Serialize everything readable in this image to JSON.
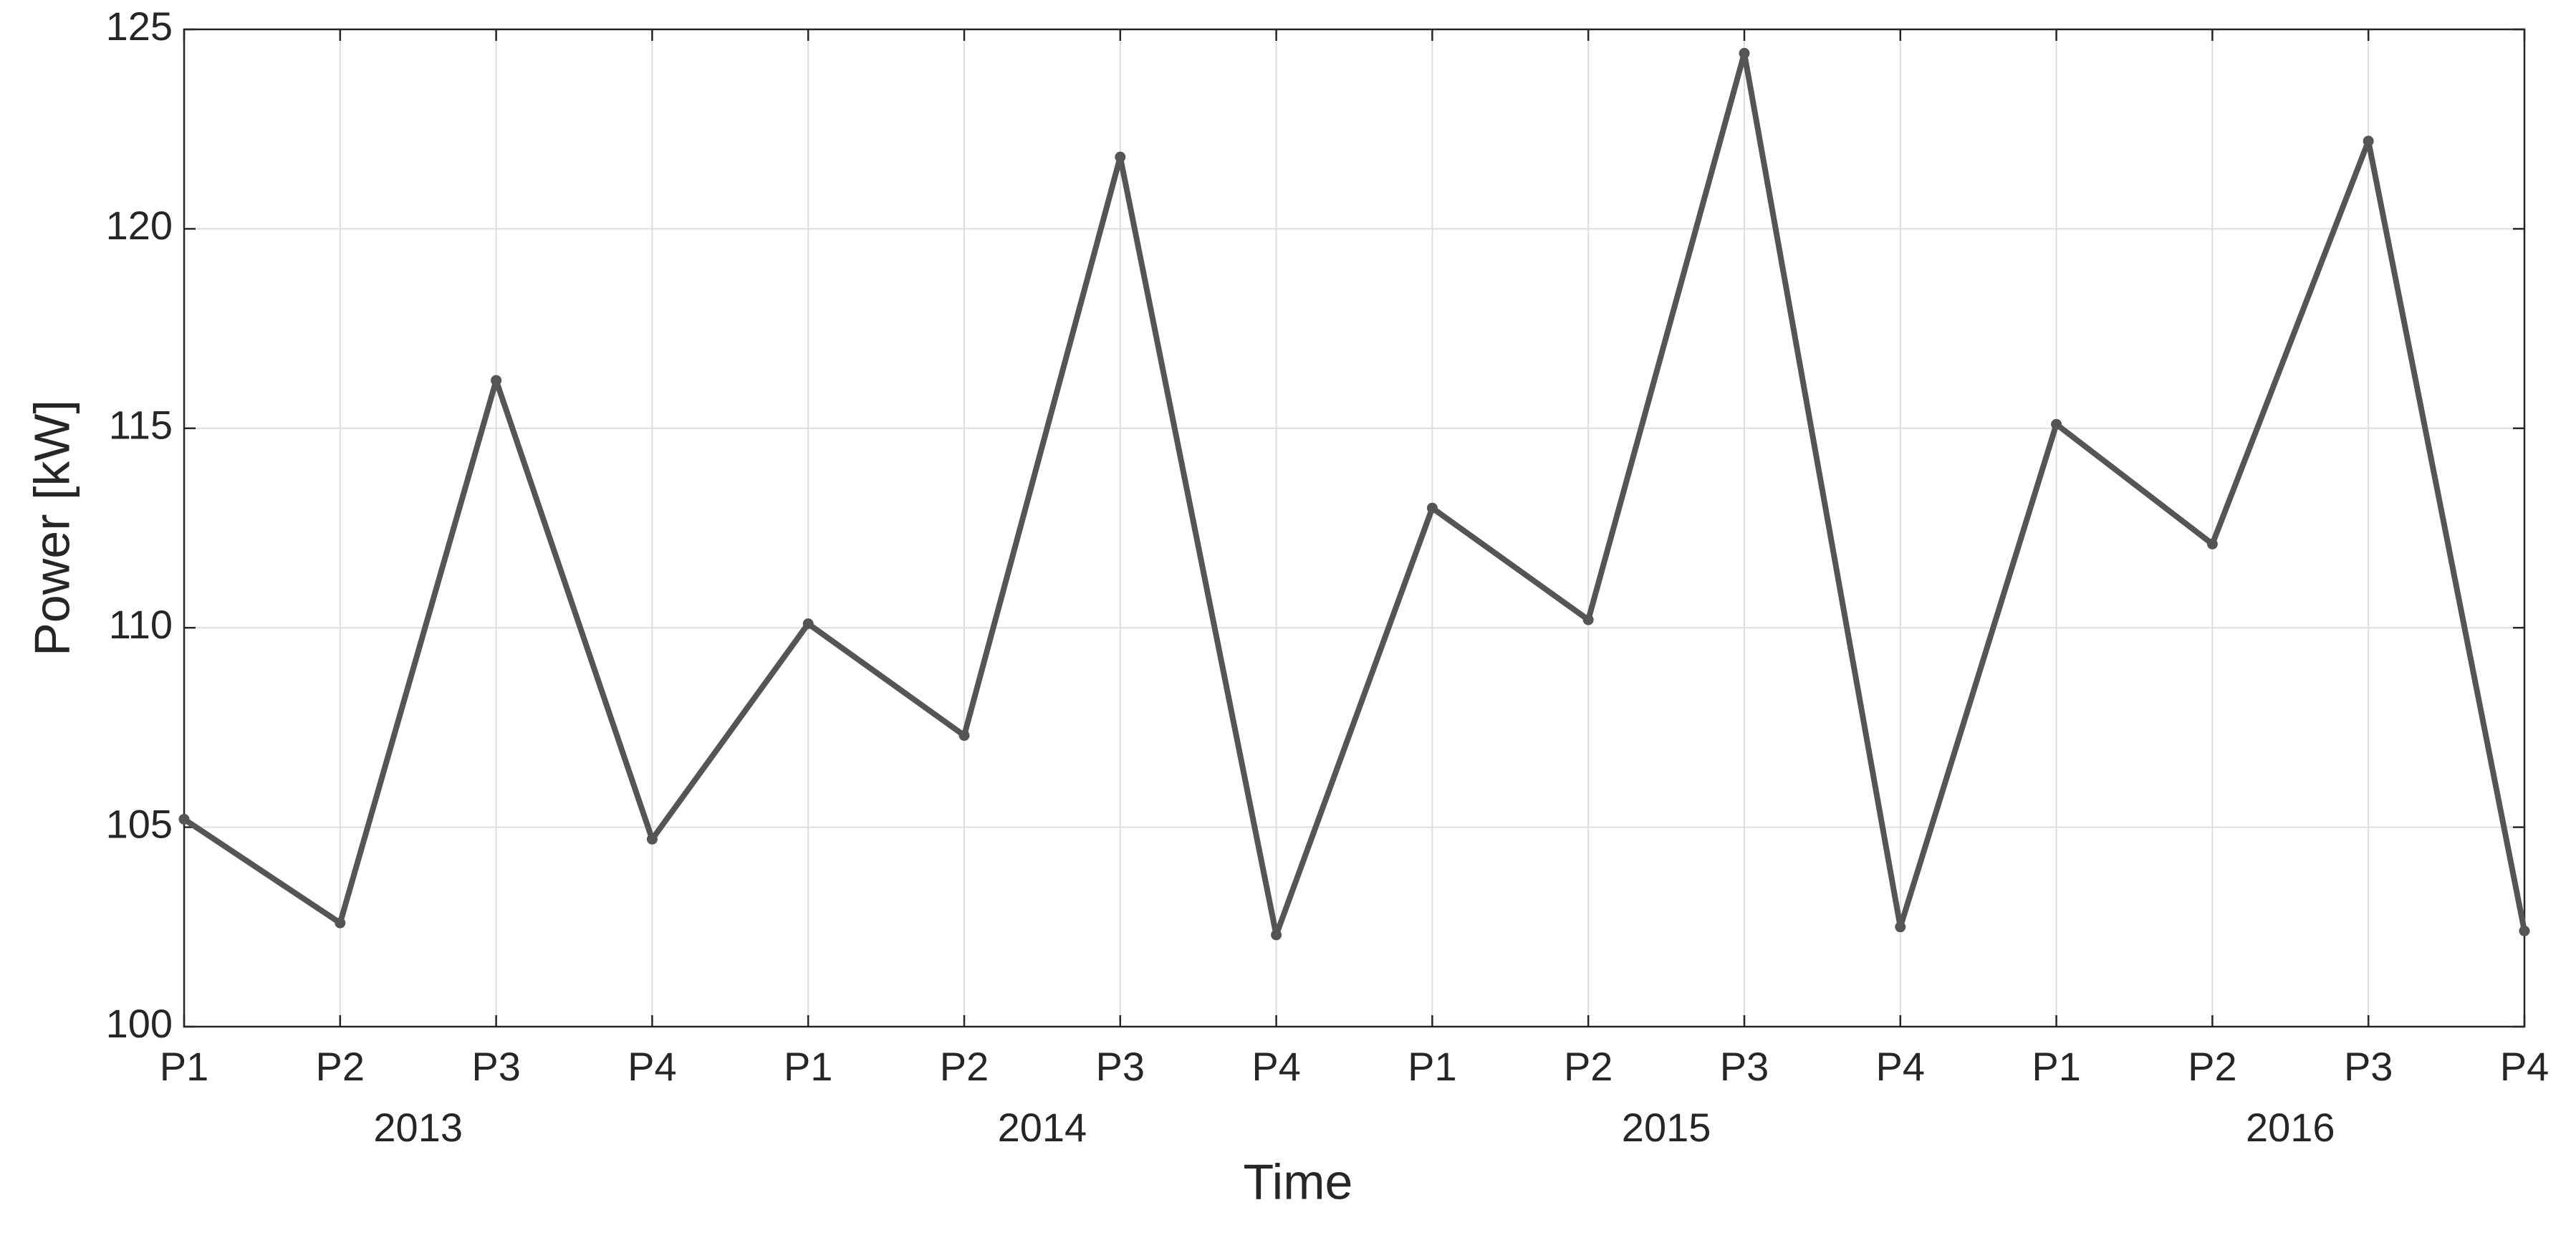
{
  "chart_data": {
    "type": "line",
    "xlabel": "Time",
    "ylabel": "Power [kW]",
    "categories": [
      "P1",
      "P2",
      "P3",
      "P4",
      "P1",
      "P2",
      "P3",
      "P4",
      "P1",
      "P2",
      "P3",
      "P4",
      "P1",
      "P2",
      "P3",
      "P4"
    ],
    "groups": [
      "2013",
      "2014",
      "2015",
      "2016"
    ],
    "series": [
      {
        "color": "#555555",
        "values": [
          105.2,
          102.6,
          116.2,
          104.7,
          110.1,
          107.3,
          121.8,
          102.3,
          113.0,
          110.2,
          124.4,
          102.5,
          115.1,
          112.1,
          122.2,
          102.4
        ]
      }
    ],
    "ylim": [
      100,
      125
    ],
    "yticks": [
      100,
      105,
      110,
      115,
      120,
      125
    ],
    "grid": true
  }
}
